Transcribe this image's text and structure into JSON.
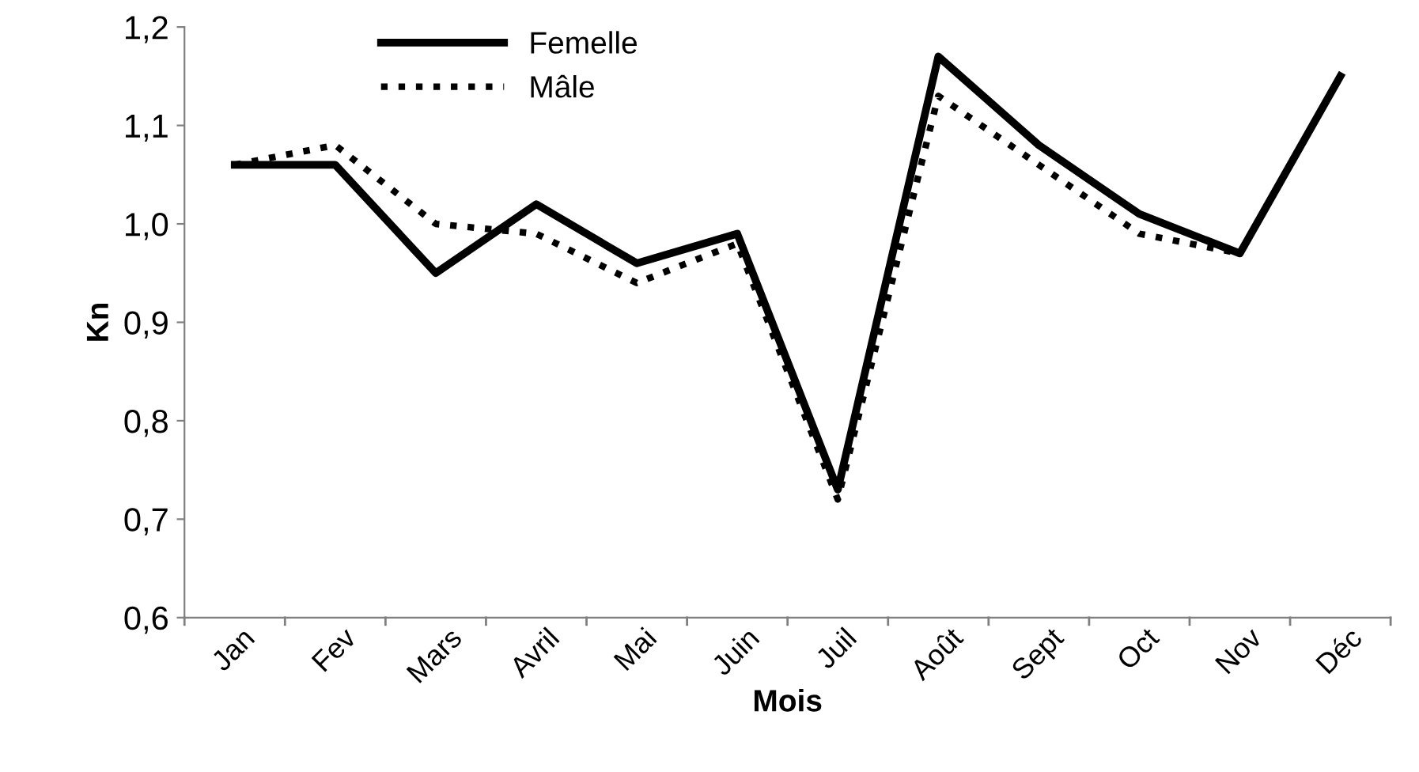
{
  "chart_data": {
    "type": "line",
    "xlabel": "Mois",
    "ylabel": "Kn",
    "categories": [
      "Jan",
      "Fev",
      "Mars",
      "Avril",
      "Mai",
      "Juin",
      "Juil",
      "Août",
      "Sept",
      "Oct",
      "Nov",
      "Déc"
    ],
    "series": [
      {
        "name": "Femelle",
        "color": "#000000",
        "line_style": "solid",
        "values": [
          1.06,
          1.06,
          0.95,
          1.02,
          0.96,
          0.99,
          0.73,
          1.17,
          1.08,
          1.01,
          0.97,
          1.15
        ]
      },
      {
        "name": "Mâle",
        "color": "#000000",
        "line_style": "dotted",
        "values": [
          1.06,
          1.08,
          1.0,
          0.99,
          0.94,
          0.98,
          0.72,
          1.13,
          1.06,
          0.99,
          0.97,
          1.15
        ]
      }
    ],
    "ylim": [
      0.6,
      1.2
    ],
    "yticks": [
      {
        "value": 0.6,
        "label": "0,6"
      },
      {
        "value": 0.7,
        "label": "0,7"
      },
      {
        "value": 0.8,
        "label": "0,8"
      },
      {
        "value": 0.9,
        "label": "0,9"
      },
      {
        "value": 1.0,
        "label": "1,0"
      },
      {
        "value": 1.1,
        "label": "1,1"
      },
      {
        "value": 1.2,
        "label": "1,2"
      }
    ],
    "grid": false,
    "legend": "top left",
    "marker": "none"
  }
}
